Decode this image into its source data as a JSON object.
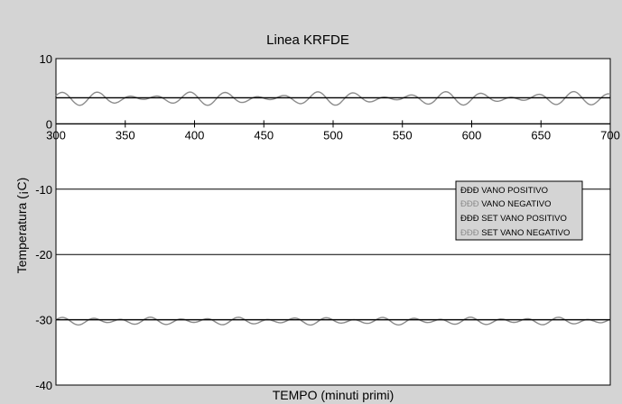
{
  "colors": {
    "frame_bg": "#d4d4d4",
    "plot_bg": "#ffffff",
    "axis": "#000000",
    "set_line": "#000000",
    "measured_line": "#8c8c8c",
    "legend_bg": "#d4d4d4"
  },
  "chart_data": {
    "type": "line",
    "title": "Linea KRFDE",
    "xlabel": "TEMPO (minuti primi)",
    "ylabel": "Temperatura (¡C)",
    "xlim": [
      300,
      700
    ],
    "ylim": [
      -40,
      10
    ],
    "x_ticks": [
      300,
      350,
      400,
      450,
      500,
      550,
      600,
      650,
      700
    ],
    "x_tick_labels": [
      "300",
      "350",
      "400",
      "450",
      "500",
      "550",
      "600",
      "650",
      "700"
    ],
    "y_ticks": [
      10,
      0,
      -10,
      -20,
      -30,
      -40
    ],
    "y_tick_labels": [
      "10",
      "0",
      "-10",
      "-20",
      "-30",
      "-40"
    ],
    "x_axis_at_y": 0,
    "grid": true,
    "legend": {
      "position": "right",
      "entries": [
        {
          "marker": "ÐÐÐ",
          "label": "VANO POSITIVO"
        },
        {
          "marker": "ÐÐÐ",
          "label": "VANO NEGATIVO"
        },
        {
          "marker": "ÐÐÐ",
          "label": "SET VANO POSITIVO"
        },
        {
          "marker": "ÐÐÐ",
          "label": "SET VANO NEGATIVO"
        }
      ]
    },
    "series": [
      {
        "name": "VANO POSITIVO",
        "style": "oscillating",
        "mean": 3.9,
        "amplitudes": [
          0.6,
          0.45
        ],
        "periods": [
          23,
          31
        ],
        "x": [
          300,
          700
        ]
      },
      {
        "name": "VANO NEGATIVO",
        "style": "oscillating",
        "mean": -30.2,
        "amplitudes": [
          0.4,
          0.2
        ],
        "periods": [
          21,
          33
        ],
        "x": [
          300,
          700
        ]
      },
      {
        "name": "SET VANO POSITIVO",
        "style": "flat",
        "x": [
          300,
          700
        ],
        "y": [
          4,
          4
        ]
      },
      {
        "name": "SET VANO NEGATIVO",
        "style": "flat",
        "x": [
          300,
          700
        ],
        "y": [
          -30,
          -30
        ]
      }
    ]
  }
}
